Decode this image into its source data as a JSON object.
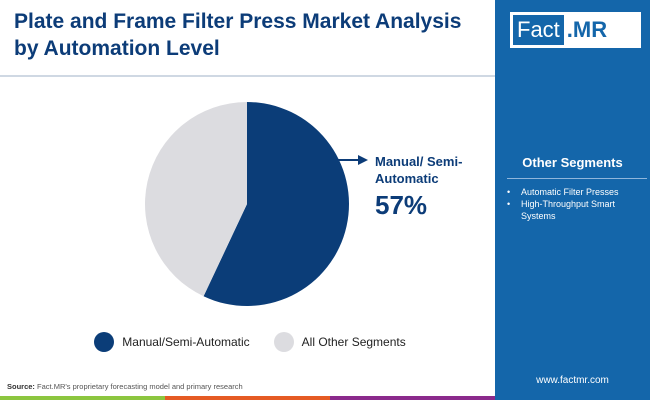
{
  "title": "Plate and Frame Filter Press Market Analysis by Automation Level",
  "logo": {
    "left": "Fact",
    "right": ".MR"
  },
  "side": {
    "heading": "Other Segments",
    "items": [
      "Automatic Filter Presses",
      "High-Throughput Smart Systems"
    ],
    "website": "www.factmr.com"
  },
  "source": {
    "label": "Source:",
    "text": " Fact.MR's proprietary forecasting model and primary research"
  },
  "callout": {
    "label": "Manual/ Semi-Automatic",
    "value": "57%"
  },
  "chart_data": {
    "type": "pie",
    "slices": [
      {
        "name": "Manual/Semi-Automatic",
        "value": 57,
        "color": "#0b3d78"
      },
      {
        "name": "All Other Segments",
        "value": 43,
        "color": "#dcdce0"
      }
    ],
    "legend": "bottom"
  }
}
